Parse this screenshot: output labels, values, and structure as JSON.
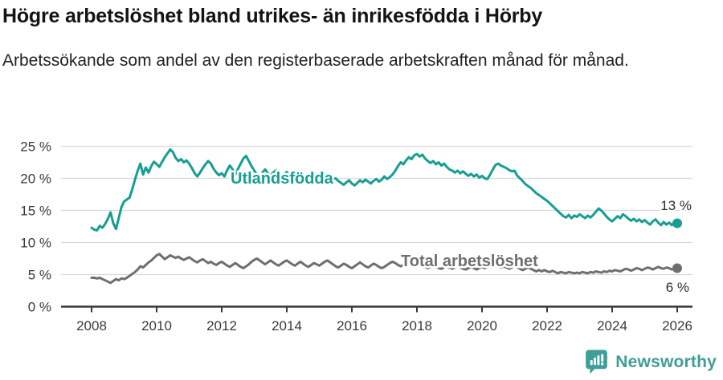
{
  "header": {
    "title": "Högre arbetslöshet bland utrikes- än inrikesfödda i Hörby",
    "subtitle": "Arbetssökande som andel av den registerbaserade arbetskraften månad för månad."
  },
  "chart_data": {
    "type": "line",
    "x_start": 2008,
    "x_end": 2026,
    "x_frequency": "monthly",
    "x_ticks": [
      2008,
      2010,
      2012,
      2014,
      2016,
      2018,
      2020,
      2022,
      2024,
      2026
    ],
    "y_ticks": [
      0,
      5,
      10,
      15,
      20,
      25
    ],
    "y_suffix": " %",
    "ylim": [
      0,
      26
    ],
    "grid": "horizontal-only",
    "legend": "inline-labels",
    "series": [
      {
        "name": "Utlandsfödda",
        "color": "#169e92",
        "end_value_label": "13 %",
        "values": [
          12.3,
          12.0,
          11.9,
          12.6,
          12.3,
          12.9,
          13.7,
          14.7,
          13.0,
          12.1,
          13.8,
          15.5,
          16.4,
          16.7,
          17.0,
          18.3,
          19.8,
          21.2,
          22.3,
          20.6,
          21.7,
          20.9,
          21.9,
          22.6,
          22.2,
          21.8,
          22.6,
          23.3,
          23.9,
          24.5,
          24.1,
          23.2,
          22.7,
          23.0,
          22.5,
          22.8,
          22.3,
          21.6,
          20.8,
          20.3,
          20.9,
          21.6,
          22.2,
          22.7,
          22.3,
          21.5,
          20.9,
          20.5,
          20.8,
          20.3,
          21.3,
          22.0,
          21.4,
          20.6,
          21.5,
          22.3,
          23.1,
          23.5,
          22.7,
          21.9,
          21.2,
          20.6,
          20.3,
          20.9,
          21.4,
          20.8,
          20.4,
          20.9,
          21.3,
          20.7,
          20.2,
          20.6,
          21.0,
          20.5,
          20.1,
          20.6,
          21.1,
          20.6,
          20.1,
          19.8,
          20.3,
          20.8,
          20.4,
          19.9,
          20.0,
          20.3,
          19.8,
          19.5,
          19.2,
          19.6,
          20.0,
          19.6,
          19.3,
          19.0,
          19.4,
          19.7,
          19.2,
          18.9,
          19.3,
          19.7,
          19.4,
          19.8,
          19.5,
          19.2,
          19.6,
          19.9,
          19.5,
          19.8,
          20.3,
          19.9,
          20.2,
          20.6,
          21.2,
          21.9,
          22.5,
          22.2,
          22.8,
          23.3,
          23.0,
          23.6,
          23.8,
          23.4,
          23.7,
          23.1,
          22.7,
          22.4,
          22.7,
          22.2,
          22.5,
          22.0,
          22.3,
          21.8,
          21.4,
          21.2,
          20.9,
          21.2,
          20.8,
          21.1,
          20.7,
          20.4,
          20.7,
          20.3,
          20.6,
          20.1,
          20.4,
          20.0,
          19.9,
          20.6,
          21.4,
          22.1,
          22.3,
          22.0,
          21.8,
          21.6,
          21.3,
          21.1,
          21.2,
          20.4,
          20.0,
          19.6,
          19.1,
          18.8,
          18.5,
          18.1,
          17.7,
          17.4,
          17.1,
          16.8,
          16.5,
          16.1,
          15.7,
          15.3,
          14.9,
          14.5,
          14.1,
          13.9,
          14.3,
          13.8,
          14.2,
          14.0,
          14.4,
          14.1,
          13.8,
          14.2,
          13.9,
          14.3,
          14.8,
          15.3,
          15.0,
          14.5,
          14.0,
          13.6,
          13.3,
          13.7,
          14.1,
          13.8,
          14.4,
          14.1,
          13.7,
          13.4,
          13.7,
          13.3,
          13.6,
          13.2,
          13.5,
          13.1,
          12.8,
          13.3,
          13.6,
          13.1,
          12.7,
          13.2,
          12.8,
          13.1,
          12.7,
          13.2,
          13.0
        ]
      },
      {
        "name": "Total arbetslöshet",
        "color": "#6f6f6f",
        "end_value_label": "6 %",
        "values": [
          4.5,
          4.5,
          4.4,
          4.5,
          4.3,
          4.1,
          3.9,
          3.7,
          4.0,
          4.3,
          4.1,
          4.4,
          4.3,
          4.5,
          4.8,
          5.1,
          5.4,
          5.8,
          6.3,
          6.1,
          6.5,
          6.9,
          7.2,
          7.6,
          8.0,
          8.2,
          7.8,
          7.4,
          7.7,
          8.0,
          7.8,
          7.6,
          7.8,
          7.5,
          7.3,
          7.5,
          7.7,
          7.4,
          7.1,
          6.9,
          7.2,
          7.4,
          7.1,
          6.8,
          7.0,
          6.7,
          6.5,
          6.8,
          7.0,
          6.7,
          6.4,
          6.2,
          6.5,
          6.8,
          6.5,
          6.2,
          6.0,
          6.3,
          6.6,
          7.0,
          7.3,
          7.5,
          7.2,
          6.9,
          6.6,
          6.9,
          7.2,
          6.9,
          6.6,
          6.4,
          6.7,
          7.0,
          7.2,
          6.9,
          6.6,
          6.4,
          6.7,
          7.0,
          6.7,
          6.4,
          6.2,
          6.5,
          6.8,
          6.6,
          6.4,
          6.7,
          7.0,
          7.2,
          6.9,
          6.6,
          6.3,
          6.1,
          6.4,
          6.7,
          6.5,
          6.2,
          6.0,
          6.3,
          6.6,
          6.9,
          6.6,
          6.3,
          6.1,
          6.4,
          6.7,
          6.5,
          6.2,
          6.0,
          6.2,
          6.5,
          6.8,
          7.0,
          6.8,
          6.5,
          6.3,
          6.5,
          6.8,
          6.6,
          6.4,
          6.2,
          6.4,
          6.6,
          6.4,
          6.2,
          6.0,
          6.2,
          6.4,
          6.2,
          6.0,
          5.9,
          6.1,
          6.3,
          6.1,
          5.9,
          6.1,
          6.3,
          6.1,
          5.9,
          5.8,
          6.0,
          6.2,
          6.0,
          5.8,
          6.0,
          6.2,
          6.0,
          6.2,
          6.5,
          6.7,
          6.5,
          6.3,
          6.1,
          6.3,
          6.1,
          5.9,
          6.1,
          6.3,
          6.1,
          5.9,
          5.7,
          5.9,
          6.1,
          5.9,
          5.7,
          5.5,
          5.7,
          5.5,
          5.7,
          5.5,
          5.4,
          5.6,
          5.4,
          5.2,
          5.4,
          5.3,
          5.2,
          5.4,
          5.3,
          5.2,
          5.3,
          5.2,
          5.4,
          5.3,
          5.2,
          5.4,
          5.3,
          5.5,
          5.4,
          5.3,
          5.5,
          5.4,
          5.6,
          5.5,
          5.7,
          5.6,
          5.5,
          5.7,
          5.9,
          5.8,
          5.6,
          5.8,
          6.0,
          5.9,
          5.7,
          5.9,
          6.1,
          6.0,
          5.8,
          6.0,
          6.2,
          6.0,
          5.9,
          6.1,
          6.0,
          5.8,
          5.9,
          6.0
        ]
      }
    ]
  },
  "footer": {
    "brand": "Newsworthy",
    "brand_color": "#3f9e97",
    "logo_icon": "bar-chart-speech-bubble-icon"
  }
}
